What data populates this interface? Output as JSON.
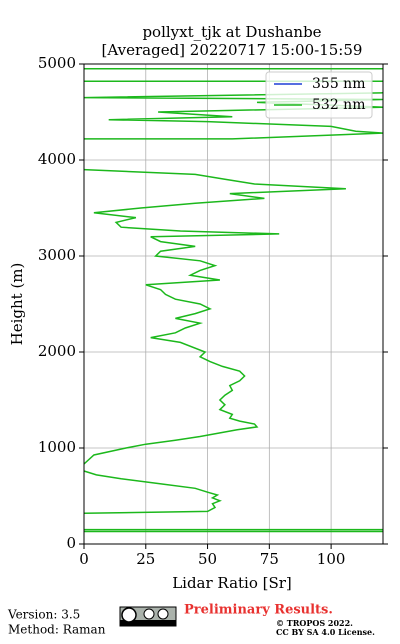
{
  "chart_data": {
    "type": "line",
    "title": "pollyxt_tjk at Dushanbe",
    "subtitle": "[Averaged] 20220717 15:00-15:59",
    "x_label": "Lidar Ratio [Sr]",
    "y_label": "Height (m)",
    "xlim": [
      0,
      121
    ],
    "xticks": [
      0,
      25,
      50,
      75,
      100
    ],
    "ylim": [
      0,
      5000
    ],
    "yticks": [
      0,
      1000,
      2000,
      3000,
      4000,
      5000
    ],
    "grid": true,
    "legend": "upper right",
    "series": [
      {
        "name": "355 nm",
        "color": "#1f3fd6",
        "x": [],
        "values": []
      },
      {
        "name": "532 nm",
        "color": "#1cb81c",
        "x": [
          121,
          0,
          null,
          0,
          121,
          null,
          0,
          50,
          53,
          52,
          55,
          52,
          54,
          50,
          45,
          30,
          15,
          5,
          0,
          null,
          0,
          4,
          17,
          25,
          37,
          47,
          62,
          70,
          69,
          63,
          59,
          60,
          55,
          57,
          55,
          57,
          60,
          59,
          63,
          65,
          63,
          56,
          51,
          47,
          49,
          39,
          27,
          37,
          41,
          47,
          37,
          45,
          51,
          47,
          37,
          33,
          31,
          25,
          55,
          43,
          47,
          53,
          47,
          29,
          31,
          45,
          31,
          27,
          79,
          39,
          15,
          13,
          21,
          4,
          23,
          45,
          73,
          59,
          106,
          69,
          57,
          45,
          0,
          null,
          0,
          60,
          121,
          110,
          100,
          50,
          10,
          60,
          30,
          121,
          70,
          121,
          0,
          121,
          null,
          0,
          121,
          null,
          0,
          121
        ],
        "values": [
          130,
          130,
          null,
          150,
          150,
          null,
          320,
          340,
          380,
          420,
          450,
          480,
          510,
          540,
          580,
          630,
          680,
          720,
          760,
          null,
          833,
          927,
          1000,
          1040,
          1080,
          1120,
          1190,
          1220,
          1250,
          1280,
          1310,
          1350,
          1400,
          1450,
          1500,
          1550,
          1600,
          1650,
          1700,
          1750,
          1800,
          1850,
          1900,
          1950,
          2000,
          2100,
          2150,
          2200,
          2250,
          2300,
          2350,
          2400,
          2450,
          2500,
          2550,
          2600,
          2650,
          2700,
          2750,
          2800,
          2850,
          2900,
          2950,
          3000,
          3050,
          3100,
          3150,
          3200,
          3230,
          3260,
          3300,
          3350,
          3400,
          3450,
          3500,
          3550,
          3600,
          3650,
          3700,
          3750,
          3800,
          3850,
          3900,
          null,
          4220,
          4220,
          4280,
          4300,
          4350,
          4400,
          4420,
          4450,
          4500,
          4550,
          4600,
          4630,
          4650,
          4700,
          null,
          4820,
          4820,
          null,
          4950,
          4950
        ]
      }
    ]
  },
  "footer": {
    "version": "Version: 3.5",
    "method": "Method: Raman",
    "status": "Preliminary Results.",
    "copyright": "© TROPOS 2022.",
    "license": "CC BY SA 4.0 License."
  }
}
